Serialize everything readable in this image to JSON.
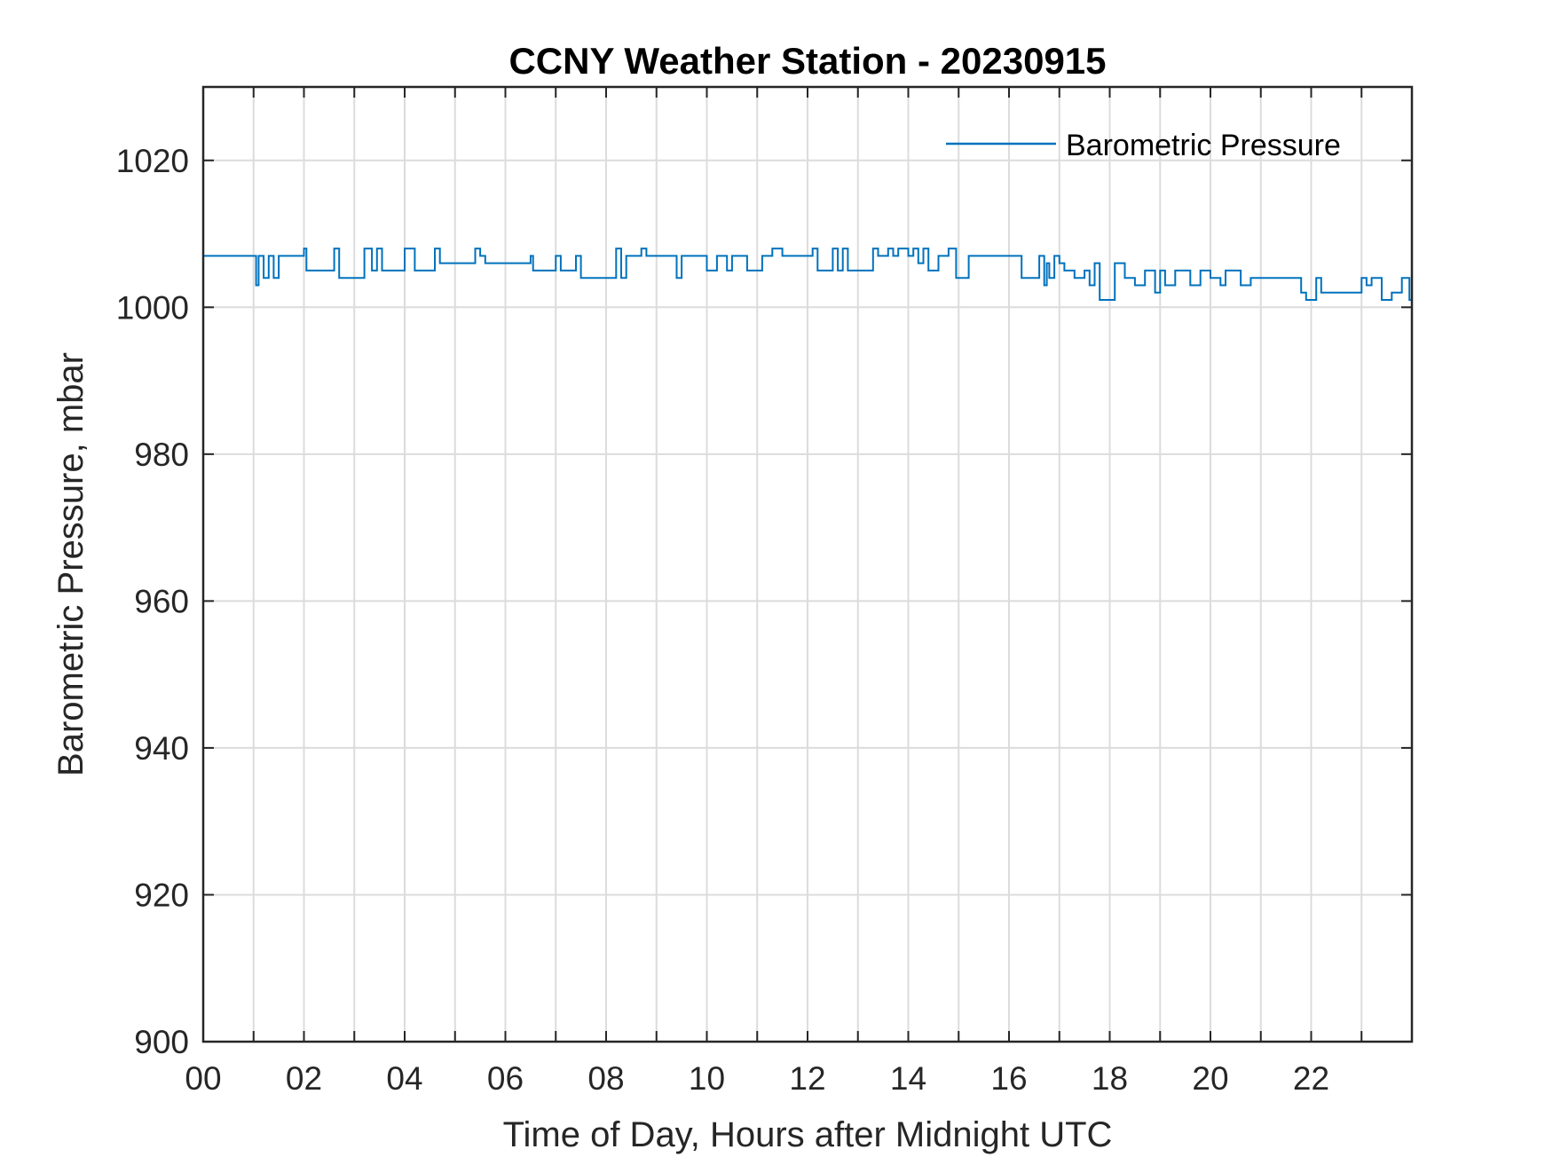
{
  "chart_data": {
    "type": "line",
    "title": "CCNY Weather Station - 20230915",
    "xlabel": "Time of Day, Hours after Midnight UTC",
    "ylabel": "Barometric Pressure, mbar",
    "xlim": [
      0,
      24
    ],
    "ylim": [
      900,
      1030
    ],
    "x_ticks": [
      0,
      2,
      4,
      6,
      8,
      10,
      12,
      14,
      16,
      18,
      20,
      22
    ],
    "x_tick_labels": [
      "00",
      "02",
      "04",
      "06",
      "08",
      "10",
      "12",
      "14",
      "16",
      "18",
      "20",
      "22"
    ],
    "x_grid_step_hours": 1,
    "y_ticks": [
      900,
      920,
      940,
      960,
      980,
      1000,
      1020
    ],
    "y_tick_labels": [
      "900",
      "920",
      "940",
      "960",
      "980",
      "1000",
      "1020"
    ],
    "grid": true,
    "legend_position": "top-right",
    "colors": {
      "series": "#0072BD",
      "axis": "#262626",
      "grid": "#dcdcdc"
    },
    "series": [
      {
        "name": "Barometric Pressure",
        "step": true,
        "x": [
          0,
          1.05,
          1.1,
          1.2,
          1.3,
          1.4,
          1.5,
          2.0,
          2.05,
          2.6,
          2.7,
          3.2,
          3.35,
          3.45,
          3.55,
          4.0,
          4.2,
          4.6,
          4.7,
          5.4,
          5.5,
          5.6,
          6.5,
          6.55,
          7.0,
          7.1,
          7.4,
          7.5,
          8.2,
          8.3,
          8.4,
          8.7,
          8.8,
          9.4,
          9.5,
          10.0,
          10.2,
          10.4,
          10.5,
          10.8,
          11.1,
          11.3,
          11.5,
          12.1,
          12.2,
          12.5,
          12.6,
          12.7,
          12.8,
          13.3,
          13.4,
          13.6,
          13.7,
          13.8,
          14.0,
          14.1,
          14.2,
          14.3,
          14.4,
          14.6,
          14.8,
          14.95,
          15.2,
          15.5,
          16.2,
          16.25,
          16.6,
          16.7,
          16.75,
          16.8,
          16.9,
          17.0,
          17.1,
          17.3,
          17.5,
          17.6,
          17.7,
          17.8,
          18.1,
          18.3,
          18.5,
          18.7,
          18.9,
          19.0,
          19.1,
          19.3,
          19.6,
          19.8,
          20.0,
          20.2,
          20.3,
          20.6,
          20.8,
          21.0,
          21.8,
          21.9,
          22.1,
          22.2,
          23.0,
          23.1,
          23.2,
          23.4,
          23.6,
          23.8,
          23.95
        ],
        "y": [
          1007,
          1003,
          1007,
          1004,
          1007,
          1004,
          1007,
          1008,
          1005,
          1008,
          1004,
          1008,
          1005,
          1008,
          1005,
          1008,
          1005,
          1008,
          1006,
          1008,
          1007,
          1006,
          1007,
          1005,
          1007,
          1005,
          1007,
          1004,
          1008,
          1004,
          1007,
          1008,
          1007,
          1004,
          1007,
          1005,
          1007,
          1005,
          1007,
          1005,
          1007,
          1008,
          1007,
          1008,
          1005,
          1008,
          1005,
          1008,
          1005,
          1008,
          1007,
          1008,
          1007,
          1008,
          1007,
          1008,
          1006,
          1008,
          1005,
          1007,
          1008,
          1004,
          1007,
          1007,
          1007,
          1004,
          1007,
          1003,
          1006,
          1004,
          1007,
          1006,
          1005,
          1004,
          1005,
          1003,
          1006,
          1001,
          1006,
          1004,
          1003,
          1005,
          1002,
          1005,
          1003,
          1005,
          1003,
          1005,
          1004,
          1003,
          1005,
          1003,
          1004,
          1004,
          1002,
          1001,
          1004,
          1002,
          1004,
          1003,
          1004,
          1001,
          1002,
          1004,
          1001
        ]
      }
    ]
  }
}
